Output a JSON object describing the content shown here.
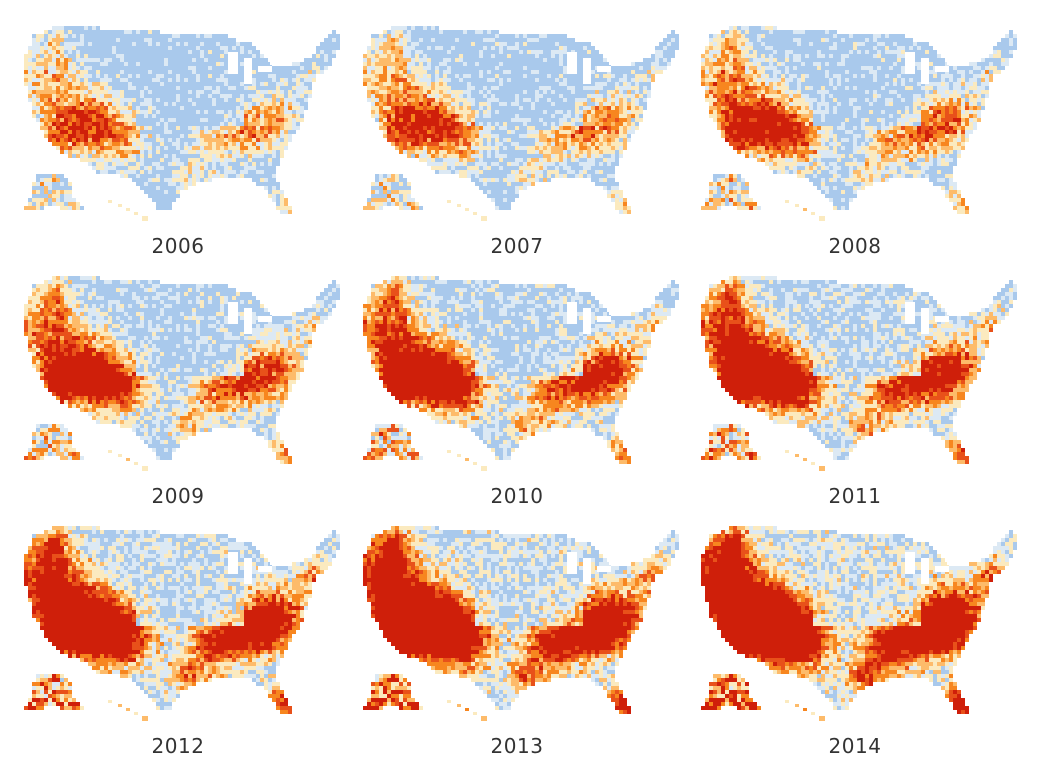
{
  "maps": [
    {
      "year": "2006",
      "intensity": 0.18
    },
    {
      "year": "2007",
      "intensity": 0.22
    },
    {
      "year": "2008",
      "intensity": 0.3
    },
    {
      "year": "2009",
      "intensity": 0.4
    },
    {
      "year": "2010",
      "intensity": 0.48
    },
    {
      "year": "2011",
      "intensity": 0.55
    },
    {
      "year": "2012",
      "intensity": 0.68
    },
    {
      "year": "2013",
      "intensity": 0.78
    },
    {
      "year": "2014",
      "intensity": 0.88
    }
  ],
  "palette": [
    "#a9c9ec",
    "#dce9f4",
    "#fbeabf",
    "#fdbb6a",
    "#f7861f",
    "#e8511a",
    "#cf1f0a"
  ]
}
